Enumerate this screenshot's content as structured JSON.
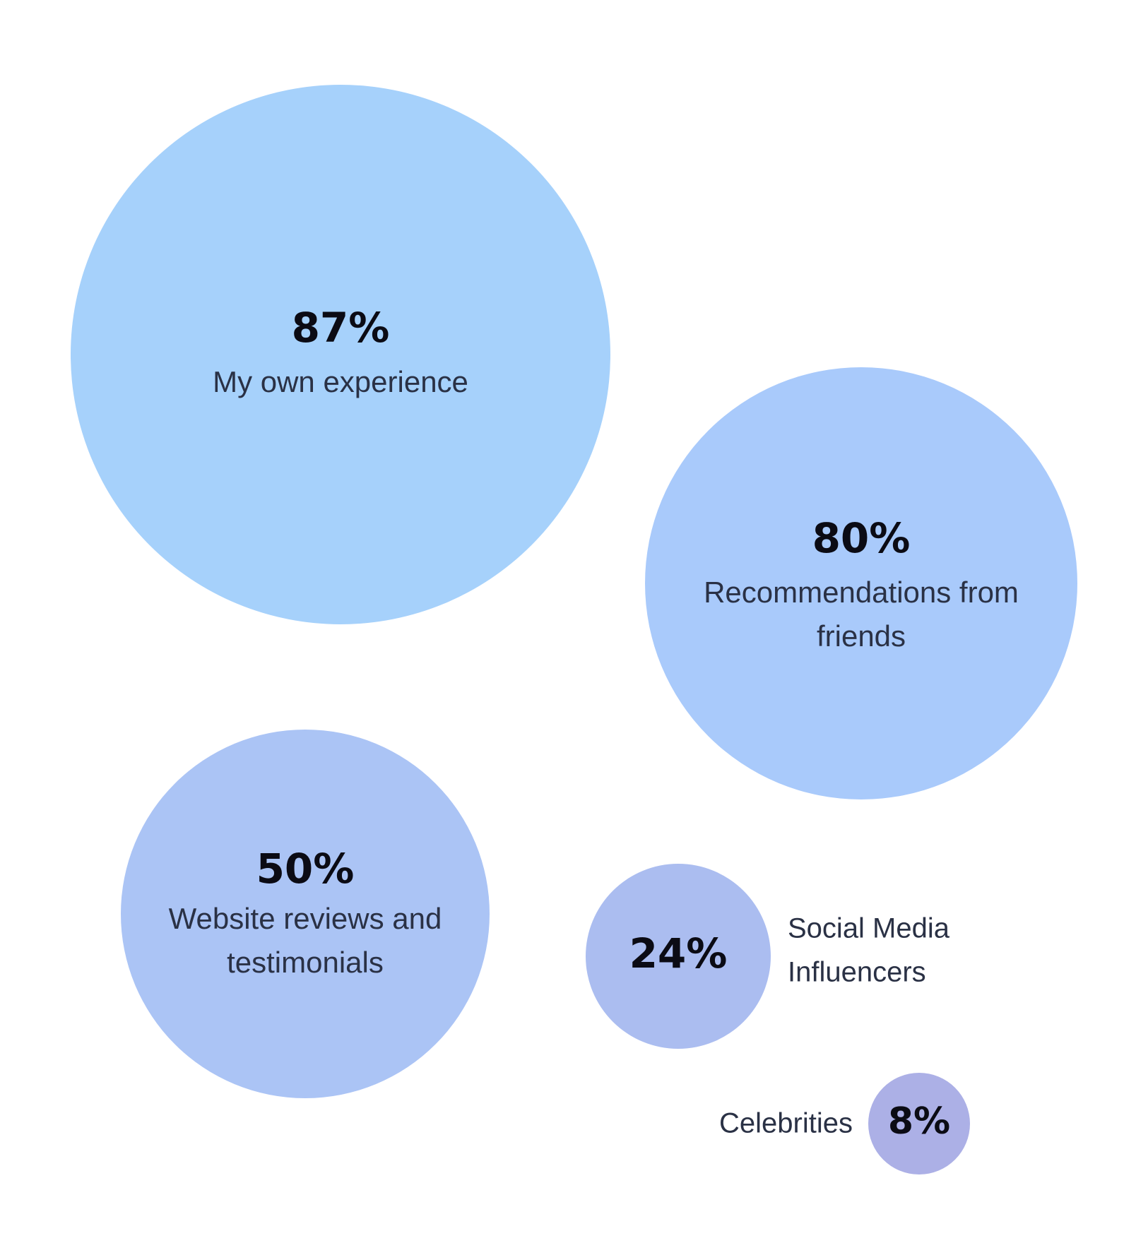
{
  "chart_data": {
    "type": "bubble",
    "title": "",
    "series": [
      {
        "name": "My own experience",
        "value": 87,
        "value_label": "87%",
        "label_lines": [
          "My own experience"
        ],
        "label_position": "inside",
        "color": "#a6d1fb"
      },
      {
        "name": "Recommendations from friends",
        "value": 80,
        "value_label": "80%",
        "label_lines": [
          "Recommendations from",
          "friends"
        ],
        "label_position": "inside",
        "color": "#a9cafb"
      },
      {
        "name": "Website reviews and testimonials",
        "value": 50,
        "value_label": "50%",
        "label_lines": [
          "Website reviews and",
          "testimonials"
        ],
        "label_position": "inside",
        "color": "#abc4f5"
      },
      {
        "name": "Social Media Influencers",
        "value": 24,
        "value_label": "24%",
        "label_lines": [
          "Social Media",
          "Influencers"
        ],
        "label_position": "right",
        "color": "#abbdf0"
      },
      {
        "name": "Celebrities",
        "value": 8,
        "value_label": "8%",
        "label_lines": [
          "Celebrities"
        ],
        "label_position": "left",
        "color": "#acb0e6"
      }
    ]
  }
}
